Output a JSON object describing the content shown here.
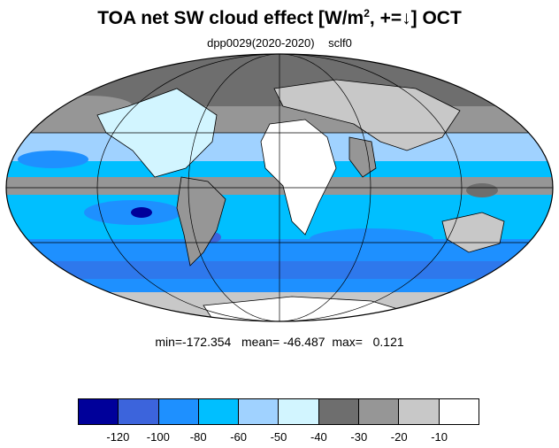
{
  "title": {
    "prefix": "TOA net SW cloud effect [W/m",
    "sup": "2",
    "suffix": ", +=↓]  OCT"
  },
  "subtitle": {
    "left": "dpp0029(2020-2020)",
    "right": "sclf0"
  },
  "stats": {
    "text": "min=-172.354   mean= -46.487  max=   0.121",
    "min": -172.354,
    "mean": -46.487,
    "max": 0.121
  },
  "map": {
    "projection": "mollweide",
    "ocean_color": "#1e90ff",
    "land_outline_color": "#000000"
  },
  "colorbar": {
    "colors": [
      "#00009a",
      "#3c64dc",
      "#1e90ff",
      "#00bfff",
      "#a0d2ff",
      "#d2f5ff",
      "#6e6e6e",
      "#969696",
      "#c8c8c8",
      "#ffffff"
    ],
    "labels": [
      "-120",
      "-100",
      "-80",
      "-60",
      "-50",
      "-40",
      "-30",
      "-20",
      "-10"
    ]
  }
}
